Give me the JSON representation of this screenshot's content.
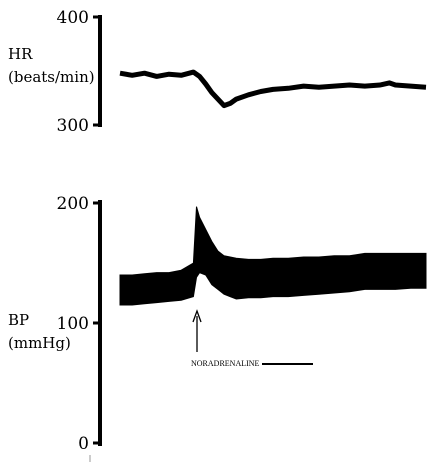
{
  "chart_data": [
    {
      "type": "line",
      "ylabel_lines": [
        "HR",
        "(beats/min)"
      ],
      "ylim": [
        300,
        400
      ],
      "ticks": [
        "400",
        "300"
      ],
      "grid": false,
      "series": [
        {
          "x": [
            0,
            4,
            8,
            12,
            16,
            20,
            24,
            26,
            28,
            30,
            32,
            34,
            36,
            38,
            42,
            46,
            50,
            55,
            60,
            65,
            70,
            75,
            80,
            85,
            88,
            90,
            95,
            100
          ],
          "y": [
            348,
            346,
            348,
            345,
            347,
            346,
            349,
            345,
            338,
            330,
            324,
            318,
            320,
            324,
            328,
            331,
            333,
            334,
            336,
            335,
            336,
            337,
            336,
            337,
            339,
            337,
            336,
            335
          ]
        }
      ]
    },
    {
      "type": "area",
      "ylabel_lines": [
        "BP",
        "(mmHg)"
      ],
      "ylim": [
        0,
        200
      ],
      "ticks": [
        "200",
        "100",
        "0"
      ],
      "grid": false,
      "series": [
        {
          "x": [
            0,
            4,
            8,
            12,
            16,
            20,
            24,
            25,
            26,
            28,
            30,
            32,
            34,
            36,
            38,
            42,
            46,
            50,
            55,
            60,
            65,
            70,
            75,
            80,
            85,
            90,
            95,
            100
          ],
          "upper": [
            140,
            140,
            141,
            142,
            142,
            144,
            150,
            197,
            188,
            178,
            168,
            160,
            156,
            155,
            154,
            153,
            153,
            154,
            154,
            155,
            155,
            156,
            156,
            158,
            158,
            158,
            158,
            158
          ],
          "lower": [
            115,
            115,
            116,
            117,
            118,
            119,
            122,
            138,
            142,
            140,
            132,
            128,
            124,
            122,
            120,
            121,
            121,
            122,
            122,
            123,
            124,
            125,
            126,
            128,
            128,
            128,
            129,
            129
          ]
        }
      ],
      "annotation": {
        "text": "NORADRENALINE",
        "x": 25
      }
    }
  ]
}
